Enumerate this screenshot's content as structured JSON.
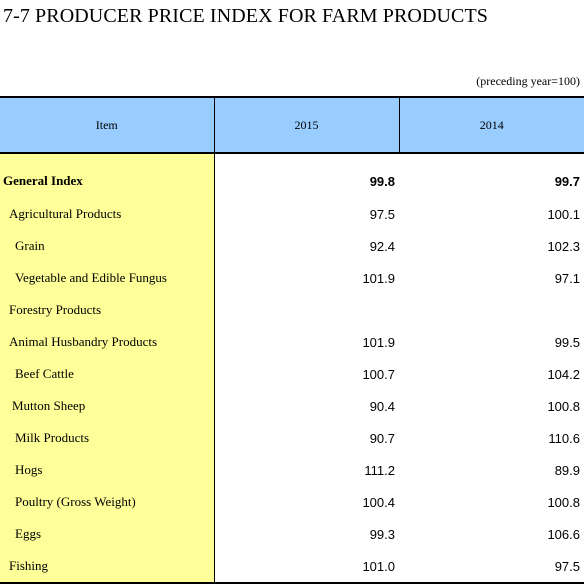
{
  "title": "7-7  PRODUCER PRICE INDEX FOR FARM PRODUCTS",
  "note": "(preceding year=100)",
  "table": {
    "headers": [
      "Item",
      "2015",
      "2014"
    ],
    "rows": [
      {
        "item": "General Index",
        "v2015": "99.8",
        "v2014": "99.7"
      },
      {
        "item": "Agricultural Products",
        "v2015": "97.5",
        "v2014": "100.1"
      },
      {
        "item": "Grain",
        "v2015": "92.4",
        "v2014": "102.3"
      },
      {
        "item": "Vegetable and Edible Fungus",
        "v2015": "101.9",
        "v2014": "97.1"
      },
      {
        "item": "Forestry Products",
        "v2015": "",
        "v2014": ""
      },
      {
        "item": "Animal Husbandry Products",
        "v2015": "101.9",
        "v2014": "99.5"
      },
      {
        "item": "Beef Cattle",
        "v2015": "100.7",
        "v2014": "104.2"
      },
      {
        "item": "Mutton Sheep",
        "v2015": "90.4",
        "v2014": "100.8"
      },
      {
        "item": "Milk Products",
        "v2015": "90.7",
        "v2014": "110.6"
      },
      {
        "item": "Hogs",
        "v2015": "111.2",
        "v2014": "89.9"
      },
      {
        "item": "Poultry (Gross Weight)",
        "v2015": "100.4",
        "v2014": "100.8"
      },
      {
        "item": "Eggs",
        "v2015": "99.3",
        "v2014": "106.6"
      },
      {
        "item": "Fishing",
        "v2015": "101.0",
        "v2014": "97.5"
      }
    ]
  }
}
